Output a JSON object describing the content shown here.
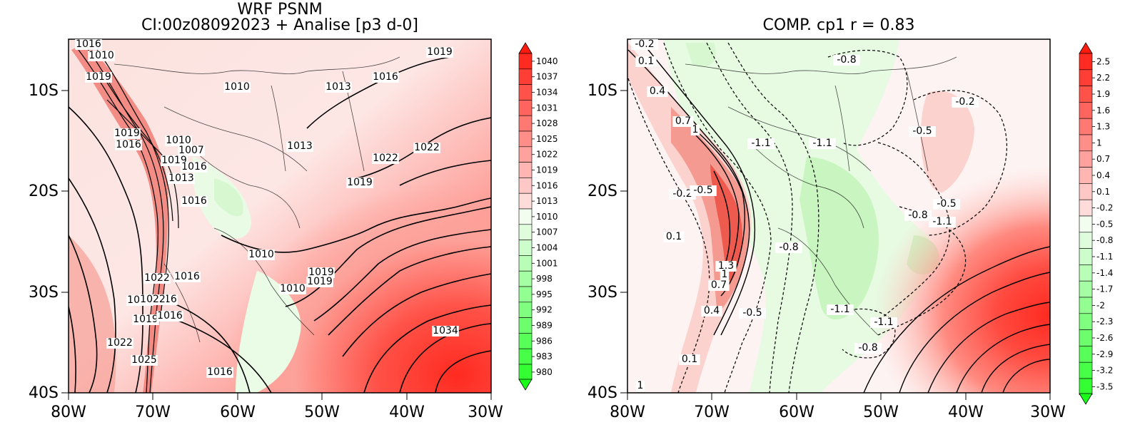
{
  "left_panel": {
    "title_line1": "WRF PSNM",
    "title_line2": "CI:00z08092023 + Analise  [p3 d-0]",
    "colorbar_labels": [
      "1040",
      "1037",
      "1034",
      "1031",
      "1028",
      "1025",
      "1022",
      "1019",
      "1016",
      "1013",
      "1010",
      "1007",
      "1004",
      "1001",
      "998",
      "995",
      "992",
      "989",
      "986",
      "983",
      "980"
    ],
    "contour_labels": [
      "1016",
      "1010",
      "1019",
      "1010",
      "1013",
      "1016",
      "1019",
      "1019",
      "1016",
      "1010",
      "1007",
      "1019",
      "1016",
      "1013",
      "1019",
      "1016",
      "1010",
      "1013",
      "1022",
      "1022",
      "1019",
      "1010",
      "1019",
      "1022",
      "1016",
      "1010",
      "1016",
      "1022",
      "1022",
      "1019",
      "1016",
      "1022",
      "1025",
      "1034",
      "1016"
    ]
  },
  "right_panel": {
    "title": "COMP. cp1  r =  0.83",
    "colorbar_labels": [
      "2.5",
      "2.2",
      "1.9",
      "1.6",
      "1.3",
      "1",
      "0.7",
      "0.4",
      "0.1",
      "-0.2",
      "-0.5",
      "-0.8",
      "-1.1",
      "-1.4",
      "-1.7",
      "-2",
      "-2.3",
      "-2.6",
      "-2.9",
      "-3.2",
      "-3.5"
    ],
    "contour_labels": [
      "-0.2",
      "0.1",
      "0.4",
      "0.7",
      "1",
      "-1.1",
      "-1.1",
      "-0.8",
      "-0.2",
      "-0.5",
      "-0.2",
      "-0.5",
      "0.1",
      "-0.8",
      "-0.8",
      "-0.5",
      "-1.1",
      "1.3",
      "1",
      "0.7",
      "0.4",
      "-0.5",
      "-1.1",
      "-1.1",
      "-0.8",
      "0.1",
      "1"
    ]
  },
  "axes": {
    "x_ticks": [
      "80W",
      "70W",
      "60W",
      "50W",
      "40W",
      "30W"
    ],
    "y_ticks": [
      "10S",
      "20S",
      "30S",
      "40S"
    ]
  },
  "colors": {
    "red_strong": "#ff2a20",
    "red_light": "#fde8e6",
    "green_strong": "#33ff33",
    "green_light": "#eafbe6"
  }
}
